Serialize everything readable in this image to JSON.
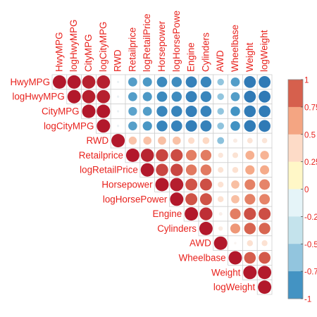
{
  "chart_data": {
    "type": "heatmap",
    "subtype": "correlation-matrix-upper",
    "variables": [
      "HwyMPG",
      "logHwyMPG",
      "CityMPG",
      "logCityMPG",
      "RWD",
      "Retailprice",
      "logRetailPrice",
      "Horsepower",
      "logHorsePower",
      "Engine",
      "Cylinders",
      "AWD",
      "Wheelbase",
      "Weight",
      "logWeight"
    ],
    "column_labels": [
      "HwyMPG",
      "logHwyMPG",
      "CityMPG",
      "logCityMPG",
      "RWD",
      "Retailprice",
      "logRetailPrice",
      "Horsepower",
      "logHorsePowe",
      "Engine",
      "Cylinders",
      "AWD",
      "Wheelbase",
      "Weight",
      "logWeight"
    ],
    "matrix": [
      [
        1,
        1,
        0.97,
        0.97,
        -0.03,
        -0.45,
        -0.47,
        -0.6,
        -0.58,
        -0.7,
        -0.65,
        -0.25,
        -0.45,
        -0.78,
        -0.78
      ],
      [
        1,
        1,
        0.97,
        0.97,
        -0.03,
        -0.45,
        -0.47,
        -0.6,
        -0.58,
        -0.7,
        -0.65,
        -0.25,
        -0.45,
        -0.78,
        -0.78
      ],
      [
        0.97,
        0.97,
        1,
        1,
        -0.03,
        -0.42,
        -0.45,
        -0.65,
        -0.66,
        -0.72,
        -0.68,
        -0.25,
        -0.5,
        -0.76,
        -0.76
      ],
      [
        0.97,
        0.97,
        1,
        1,
        -0.03,
        -0.44,
        -0.48,
        -0.66,
        -0.68,
        -0.73,
        -0.69,
        -0.26,
        -0.51,
        -0.76,
        -0.78
      ],
      [
        -0.03,
        -0.03,
        -0.03,
        -0.03,
        1,
        0.36,
        0.37,
        0.38,
        0.37,
        0.23,
        0.26,
        -0.27,
        0.1,
        0.17,
        0.16
      ],
      [
        -0.45,
        -0.45,
        -0.42,
        -0.44,
        0.36,
        1,
        0.96,
        0.84,
        0.82,
        0.64,
        0.65,
        0.15,
        0.18,
        0.45,
        0.43
      ],
      [
        -0.47,
        -0.47,
        -0.45,
        -0.48,
        0.37,
        0.96,
        1,
        0.84,
        0.84,
        0.66,
        0.66,
        0.18,
        0.2,
        0.48,
        0.47
      ],
      [
        -0.6,
        -0.6,
        -0.65,
        -0.66,
        0.38,
        0.84,
        0.84,
        1,
        0.98,
        0.79,
        0.81,
        0.19,
        0.38,
        0.63,
        0.62
      ],
      [
        -0.58,
        -0.58,
        -0.66,
        -0.68,
        0.37,
        0.82,
        0.84,
        0.98,
        1,
        0.8,
        0.8,
        0.2,
        0.38,
        0.63,
        0.62
      ],
      [
        -0.7,
        -0.7,
        -0.72,
        -0.73,
        0.23,
        0.64,
        0.66,
        0.79,
        0.8,
        1,
        0.92,
        0.07,
        0.64,
        0.81,
        0.81
      ],
      [
        -0.65,
        -0.65,
        -0.68,
        -0.69,
        0.26,
        0.65,
        0.66,
        0.81,
        0.8,
        0.92,
        1,
        0.11,
        0.55,
        0.74,
        0.73
      ],
      [
        -0.25,
        -0.25,
        -0.25,
        -0.26,
        -0.27,
        0.15,
        0.18,
        0.19,
        0.2,
        0.07,
        0.11,
        1,
        0.03,
        0.2,
        0.19
      ],
      [
        -0.45,
        -0.45,
        -0.5,
        -0.51,
        0.1,
        0.18,
        0.2,
        0.38,
        0.38,
        0.64,
        0.55,
        0.03,
        1,
        0.76,
        0.77
      ],
      [
        -0.78,
        -0.78,
        -0.76,
        -0.76,
        0.17,
        0.45,
        0.48,
        0.63,
        0.63,
        0.81,
        0.74,
        0.2,
        0.76,
        1,
        0.99
      ],
      [
        -0.78,
        -0.78,
        -0.76,
        -0.78,
        0.16,
        0.43,
        0.47,
        0.62,
        0.62,
        0.81,
        0.73,
        0.19,
        0.77,
        0.99,
        1
      ]
    ],
    "legend": {
      "ticks": [
        1,
        0.75,
        0.5,
        0.25,
        0,
        -0.25,
        -0.5,
        -0.75,
        -1
      ],
      "tick_labels": [
        "1",
        "0.75",
        "0.5",
        "0.25",
        "0",
        "-0.25",
        "-0.5",
        "-0.75",
        "-1"
      ],
      "colors_top_to_bottom": [
        "#D6604D",
        "#F4A582",
        "#FDDBC7",
        "#FFF7C7",
        "#E5F4F8",
        "#C4E3EC",
        "#92C5DE",
        "#4393C3"
      ],
      "placement": "right"
    },
    "label_color": "#E8221D",
    "grid": true,
    "ylim": [
      -1,
      1
    ]
  }
}
